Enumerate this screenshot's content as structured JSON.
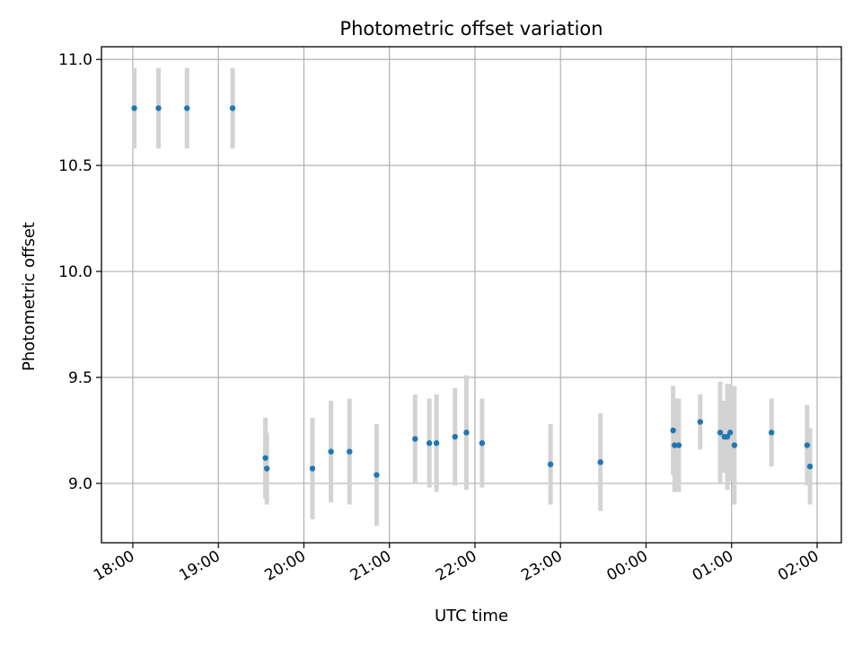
{
  "chart_data": {
    "type": "scatter",
    "title": "Photometric offset variation",
    "xlabel": "UTC time",
    "ylabel": "Photometric offset",
    "grid": true,
    "x_ticks": [
      "18:00",
      "19:00",
      "20:00",
      "21:00",
      "22:00",
      "23:00",
      "00:00",
      "01:00",
      "02:00"
    ],
    "y_ticks": [
      "9.0",
      "9.5",
      "10.0",
      "10.5",
      "11.0"
    ],
    "xlim": [
      "17:38",
      "02:17"
    ],
    "ylim": [
      8.72,
      11.06
    ],
    "colors": {
      "points": "#1f77b4",
      "errorbars": "#d3d3d3",
      "grid": "#b0b0b0"
    },
    "series": [
      {
        "points": [
          {
            "x": "18:01",
            "y": 10.77,
            "err": 0.19
          },
          {
            "x": "18:18",
            "y": 10.77,
            "err": 0.19
          },
          {
            "x": "18:38",
            "y": 10.77,
            "err": 0.19
          },
          {
            "x": "19:10",
            "y": 10.77,
            "err": 0.19
          },
          {
            "x": "19:33",
            "y": 9.12,
            "err": 0.19
          },
          {
            "x": "19:34",
            "y": 9.07,
            "err": 0.17
          },
          {
            "x": "20:06",
            "y": 9.07,
            "err": 0.24
          },
          {
            "x": "20:19",
            "y": 9.15,
            "err": 0.24
          },
          {
            "x": "20:32",
            "y": 9.15,
            "err": 0.25
          },
          {
            "x": "20:51",
            "y": 9.04,
            "err": 0.24
          },
          {
            "x": "21:18",
            "y": 9.21,
            "err": 0.21
          },
          {
            "x": "21:28",
            "y": 9.19,
            "err": 0.21
          },
          {
            "x": "21:33",
            "y": 9.19,
            "err": 0.23
          },
          {
            "x": "21:46",
            "y": 9.22,
            "err": 0.23
          },
          {
            "x": "21:54",
            "y": 9.24,
            "err": 0.27
          },
          {
            "x": "22:05",
            "y": 9.19,
            "err": 0.21
          },
          {
            "x": "22:53",
            "y": 9.09,
            "err": 0.19
          },
          {
            "x": "23:28",
            "y": 9.1,
            "err": 0.23
          },
          {
            "x": "00:19",
            "y": 9.25,
            "err": 0.21
          },
          {
            "x": "00:20",
            "y": 9.18,
            "err": 0.22
          },
          {
            "x": "00:23",
            "y": 9.18,
            "err": 0.22
          },
          {
            "x": "00:38",
            "y": 9.29,
            "err": 0.13
          },
          {
            "x": "00:52",
            "y": 9.24,
            "err": 0.24
          },
          {
            "x": "00:55",
            "y": 9.22,
            "err": 0.17
          },
          {
            "x": "00:57",
            "y": 9.22,
            "err": 0.25
          },
          {
            "x": "00:59",
            "y": 9.24,
            "err": 0.23
          },
          {
            "x": "01:02",
            "y": 9.18,
            "err": 0.28
          },
          {
            "x": "01:28",
            "y": 9.24,
            "err": 0.16
          },
          {
            "x": "01:53",
            "y": 9.18,
            "err": 0.19
          },
          {
            "x": "01:55",
            "y": 9.08,
            "err": 0.18
          }
        ]
      }
    ]
  }
}
